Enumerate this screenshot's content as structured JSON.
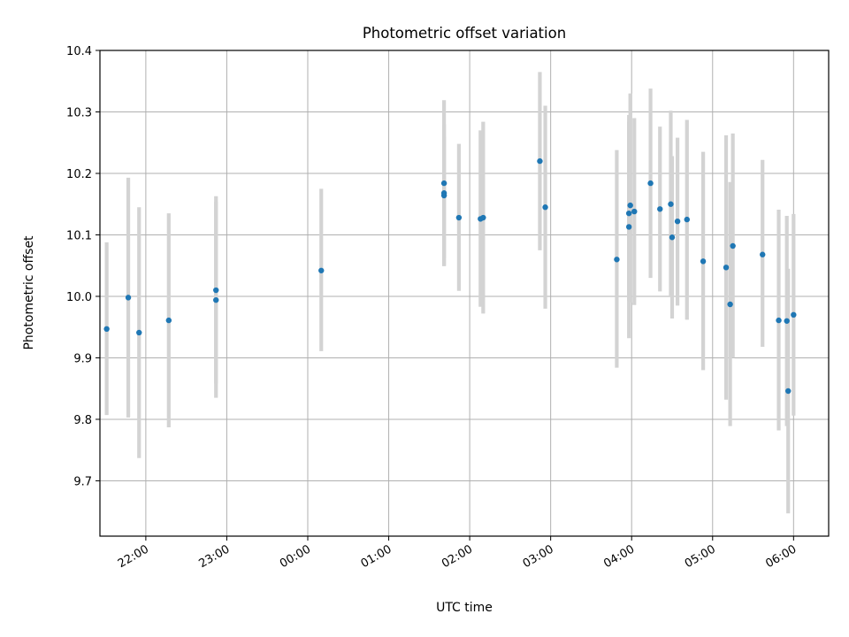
{
  "chart_data": {
    "type": "scatter",
    "title": "Photometric offset variation",
    "xlabel": "UTC time",
    "ylabel": "Photometric offset",
    "x_reference_date": "",
    "x_is_time": true,
    "xlim": [
      "21:25",
      "06:25"
    ],
    "ylim": [
      9.61,
      10.4
    ],
    "yticks": [
      9.7,
      9.8,
      9.9,
      10.0,
      10.1,
      10.2,
      10.3,
      10.4
    ],
    "ytick_labels": [
      "9.7",
      "9.8",
      "9.9",
      "10.0",
      "10.1",
      "10.2",
      "10.3",
      "10.4"
    ],
    "xticks": [
      "21:59",
      "22:59",
      "23:59",
      "00:59",
      "01:59",
      "02:59",
      "03:59",
      "04:59",
      "05:59"
    ],
    "xtick_labels": [
      "22:00",
      "23:00",
      "00:00",
      "01:00",
      "02:00",
      "03:00",
      "04:00",
      "05:00",
      "06:00"
    ],
    "grid": true,
    "marker_color": "#1f77b4",
    "errorbar_color": "#d3d3d3",
    "series": [
      {
        "points": [
          {
            "x": "21:30",
            "y": 9.947,
            "lo": 9.807,
            "hi": 10.088
          },
          {
            "x": "21:46",
            "y": 9.998,
            "lo": 9.803,
            "hi": 10.193
          },
          {
            "x": "21:54",
            "y": 9.941,
            "lo": 9.737,
            "hi": 10.145
          },
          {
            "x": "22:16",
            "y": 9.961,
            "lo": 9.787,
            "hi": 10.135
          },
          {
            "x": "22:51",
            "y": 10.01,
            "lo": 9.858,
            "hi": 10.163
          },
          {
            "x": "22:51",
            "y": 9.994,
            "lo": 9.835,
            "hi": 10.154
          },
          {
            "x": "00:09",
            "y": 10.042,
            "lo": 9.911,
            "hi": 10.175
          },
          {
            "x": "01:40",
            "y": 10.184,
            "lo": 10.049,
            "hi": 10.319
          },
          {
            "x": "01:40",
            "y": 10.168,
            "lo": 10.062,
            "hi": 10.28
          },
          {
            "x": "01:40",
            "y": 10.164,
            "lo": 10.05,
            "hi": 10.26
          },
          {
            "x": "01:51",
            "y": 10.128,
            "lo": 10.009,
            "hi": 10.248
          },
          {
            "x": "02:07",
            "y": 10.126,
            "lo": 9.983,
            "hi": 10.27
          },
          {
            "x": "02:09",
            "y": 10.128,
            "lo": 9.972,
            "hi": 10.284
          },
          {
            "x": "02:51",
            "y": 10.22,
            "lo": 10.075,
            "hi": 10.365
          },
          {
            "x": "02:55",
            "y": 10.145,
            "lo": 9.98,
            "hi": 10.31
          },
          {
            "x": "03:48",
            "y": 10.06,
            "lo": 9.884,
            "hi": 10.238
          },
          {
            "x": "03:57",
            "y": 10.135,
            "lo": 9.993,
            "hi": 10.284
          },
          {
            "x": "03:57",
            "y": 10.113,
            "lo": 9.932,
            "hi": 10.295
          },
          {
            "x": "03:58",
            "y": 10.148,
            "lo": 9.99,
            "hi": 10.33
          },
          {
            "x": "04:01",
            "y": 10.138,
            "lo": 9.986,
            "hi": 10.29
          },
          {
            "x": "04:13",
            "y": 10.184,
            "lo": 10.03,
            "hi": 10.338
          },
          {
            "x": "04:20",
            "y": 10.142,
            "lo": 10.008,
            "hi": 10.276
          },
          {
            "x": "04:28",
            "y": 10.15,
            "lo": 10.0,
            "hi": 10.302
          },
          {
            "x": "04:29",
            "y": 10.096,
            "lo": 9.964,
            "hi": 10.228
          },
          {
            "x": "04:33",
            "y": 10.122,
            "lo": 9.985,
            "hi": 10.258
          },
          {
            "x": "04:40",
            "y": 10.125,
            "lo": 9.962,
            "hi": 10.287
          },
          {
            "x": "04:52",
            "y": 10.057,
            "lo": 9.88,
            "hi": 10.235
          },
          {
            "x": "05:09",
            "y": 10.047,
            "lo": 9.832,
            "hi": 10.262
          },
          {
            "x": "05:12",
            "y": 9.987,
            "lo": 9.789,
            "hi": 10.186
          },
          {
            "x": "05:14",
            "y": 10.082,
            "lo": 9.9,
            "hi": 10.265
          },
          {
            "x": "05:36",
            "y": 10.068,
            "lo": 9.918,
            "hi": 10.222
          },
          {
            "x": "05:48",
            "y": 9.961,
            "lo": 9.782,
            "hi": 10.141
          },
          {
            "x": "05:54",
            "y": 9.96,
            "lo": 9.789,
            "hi": 10.131
          },
          {
            "x": "05:55",
            "y": 9.846,
            "lo": 9.647,
            "hi": 10.045
          },
          {
            "x": "05:59",
            "y": 9.97,
            "lo": 9.806,
            "hi": 10.134
          }
        ]
      }
    ]
  }
}
